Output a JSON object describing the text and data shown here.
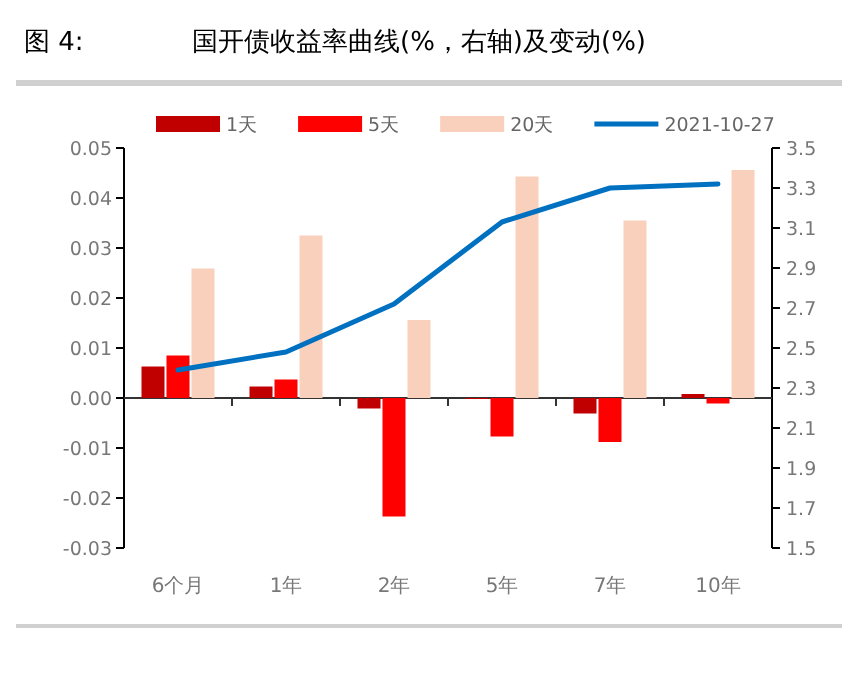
{
  "chart_data": {
    "type": "bar",
    "title": "图 4:",
    "subtitle": "国开债收益率曲线(%，右轴)及变动(%)",
    "categories": [
      "6个月",
      "1年",
      "2年",
      "5年",
      "7年",
      "10年"
    ],
    "series": [
      {
        "name": "1天",
        "color": "#c00000",
        "values": [
          0.0063,
          0.0023,
          -0.0021,
          -0.0002,
          -0.0031,
          0.0008
        ]
      },
      {
        "name": "5天",
        "color": "#ff0000",
        "values": [
          0.0085,
          0.0037,
          -0.0237,
          -0.0077,
          -0.0088,
          -0.0011
        ]
      },
      {
        "name": "20天",
        "color": "#f9d0bb",
        "values": [
          0.0259,
          0.0325,
          0.0156,
          0.0443,
          0.0355,
          0.0456
        ]
      },
      {
        "name": "2021-10-27",
        "type": "line",
        "axis": "y2",
        "color": "#0070c0",
        "values": [
          2.39,
          2.48,
          2.72,
          3.13,
          3.3,
          3.32
        ]
      }
    ],
    "ylim": [
      -0.03,
      0.05
    ],
    "yticks": [
      {
        "value": -0.03,
        "label": "-0.03"
      },
      {
        "value": -0.02,
        "label": "-0.02"
      },
      {
        "value": -0.01,
        "label": "-0.01"
      },
      {
        "value": 0,
        "label": "0.00"
      },
      {
        "value": 0.01,
        "label": "0.01"
      },
      {
        "value": 0.02,
        "label": "0.02"
      },
      {
        "value": 0.03,
        "label": "0.03"
      },
      {
        "value": 0.04,
        "label": "0.04"
      },
      {
        "value": 0.05,
        "label": "0.05"
      }
    ],
    "y2lim": [
      1.5,
      3.5
    ],
    "y2ticks": [
      1.5,
      1.7,
      1.9,
      2.1,
      2.3,
      2.5,
      2.7,
      2.9,
      3.1,
      3.3,
      3.5
    ],
    "legend": "top"
  }
}
